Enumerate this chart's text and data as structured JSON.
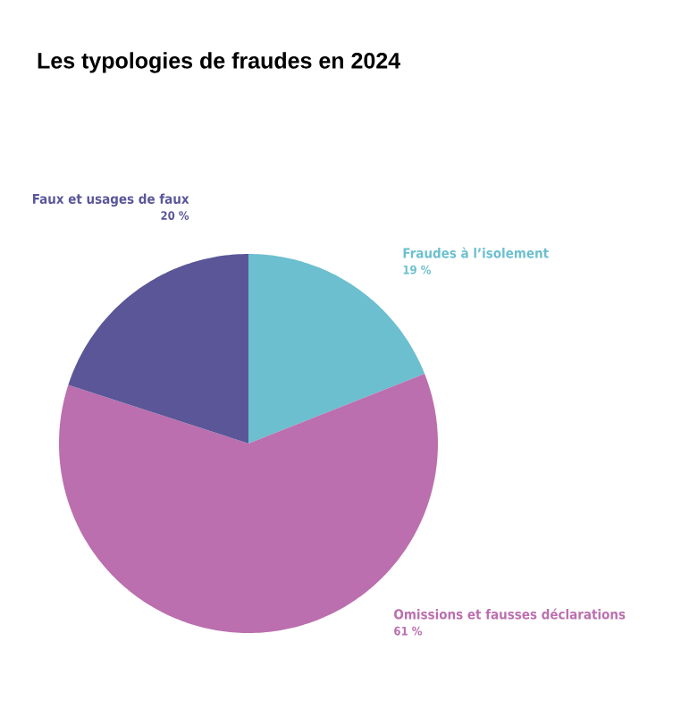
{
  "chart_data": {
    "type": "pie",
    "title": "Les typologies de fraudes en 2024",
    "categories": [
      "Fraudes à l’isolement",
      "Omissions et fausses déclarations",
      "Faux et usages de faux"
    ],
    "values": [
      19,
      61,
      20
    ],
    "value_labels": [
      "19 %",
      "61 %",
      "20 %"
    ],
    "colors": [
      "#6bbfcf",
      "#bb6fae",
      "#5a5698"
    ]
  }
}
